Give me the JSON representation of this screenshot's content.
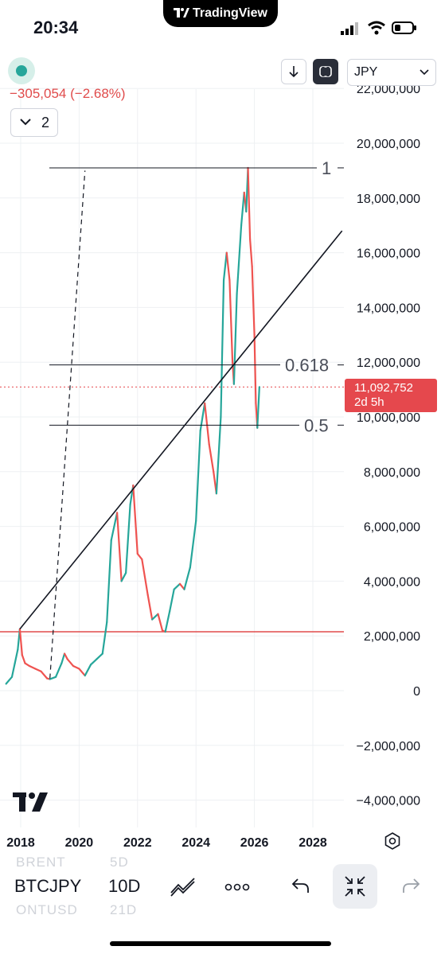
{
  "status": {
    "time": "20:34",
    "app_pill": "TradingView"
  },
  "header": {
    "change": "−305,054 (−2.68%)",
    "indicator_count": "2",
    "currency": "JPY"
  },
  "colors": {
    "up": "#26a69a",
    "down": "#ef5350",
    "last_price": "#e5484d",
    "support_line": "#e04b4b",
    "grid": "#eef0f3"
  },
  "price_tag": {
    "price": "11,092,752",
    "countdown": "2d 5h"
  },
  "chart_data": {
    "type": "line",
    "symbol": "BTCJPY",
    "interval": "10D",
    "y_axis": {
      "ticks": [
        22000000,
        20000000,
        18000000,
        16000000,
        14000000,
        12000000,
        10000000,
        8000000,
        6000000,
        4000000,
        2000000,
        0,
        -2000000,
        -4000000
      ],
      "tick_labels": [
        "22,000,000",
        "20,000,000",
        "18,000,000",
        "16,000,000",
        "14,000,000",
        "12,000,000",
        "10,000,000",
        "8,000,000",
        "6,000,000",
        "4,000,000",
        "2,000,000",
        "0",
        "−2,000,000",
        "−4,000,000"
      ],
      "range": [
        -4500000,
        22300000
      ]
    },
    "x_axis": {
      "ticks": [
        2018,
        2020,
        2022,
        2024,
        2026,
        2028
      ],
      "tick_labels": [
        "2018",
        "2020",
        "2022",
        "2024",
        "2026",
        "2028"
      ],
      "range": [
        2017.5,
        2029
      ]
    },
    "series": [
      {
        "values": [
          [
            2017.5,
            250000
          ],
          [
            2017.7,
            500000
          ],
          [
            2017.8,
            1000000
          ],
          [
            2017.9,
            1500000
          ],
          [
            2017.97,
            2250000
          ],
          [
            2018.05,
            1300000
          ],
          [
            2018.15,
            1000000
          ],
          [
            2018.3,
            900000
          ],
          [
            2018.5,
            800000
          ],
          [
            2018.7,
            700000
          ],
          [
            2018.9,
            450000
          ],
          [
            2019.0,
            420000
          ],
          [
            2019.2,
            500000
          ],
          [
            2019.4,
            1000000
          ],
          [
            2019.5,
            1350000
          ],
          [
            2019.6,
            1150000
          ],
          [
            2019.8,
            900000
          ],
          [
            2020.0,
            800000
          ],
          [
            2020.2,
            550000
          ],
          [
            2020.4,
            950000
          ],
          [
            2020.6,
            1150000
          ],
          [
            2020.8,
            1350000
          ],
          [
            2020.95,
            2500000
          ],
          [
            2021.1,
            5500000
          ],
          [
            2021.3,
            6500000
          ],
          [
            2021.45,
            4000000
          ],
          [
            2021.6,
            4300000
          ],
          [
            2021.75,
            6800000
          ],
          [
            2021.85,
            7500000
          ],
          [
            2022.0,
            5000000
          ],
          [
            2022.15,
            4800000
          ],
          [
            2022.35,
            3500000
          ],
          [
            2022.5,
            2600000
          ],
          [
            2022.7,
            2800000
          ],
          [
            2022.85,
            2200000
          ],
          [
            2022.95,
            2150000
          ],
          [
            2023.1,
            2900000
          ],
          [
            2023.25,
            3700000
          ],
          [
            2023.45,
            3900000
          ],
          [
            2023.6,
            3700000
          ],
          [
            2023.8,
            4500000
          ],
          [
            2024.0,
            6200000
          ],
          [
            2024.15,
            9500000
          ],
          [
            2024.3,
            10500000
          ],
          [
            2024.45,
            9000000
          ],
          [
            2024.6,
            8000000
          ],
          [
            2024.7,
            7200000
          ],
          [
            2024.85,
            10000000
          ],
          [
            2024.95,
            15000000
          ],
          [
            2025.05,
            16000000
          ],
          [
            2025.15,
            15000000
          ],
          [
            2025.25,
            12000000
          ],
          [
            2025.3,
            11200000
          ],
          [
            2025.4,
            14500000
          ],
          [
            2025.55,
            17000000
          ],
          [
            2025.65,
            18200000
          ],
          [
            2025.72,
            17500000
          ],
          [
            2025.78,
            19100000
          ],
          [
            2025.85,
            16500000
          ],
          [
            2025.92,
            15500000
          ],
          [
            2026.0,
            13000000
          ],
          [
            2026.05,
            10500000
          ],
          [
            2026.1,
            9600000
          ],
          [
            2026.17,
            11092752
          ]
        ]
      }
    ],
    "annotations": [
      {
        "type": "fib_level",
        "label": "1",
        "value": 19100000
      },
      {
        "type": "fib_level",
        "label": "0.618",
        "value": 11900000
      },
      {
        "type": "fib_level",
        "label": "0.5",
        "value": 9700000
      },
      {
        "type": "horizontal_line",
        "value": 2150000
      },
      {
        "type": "trend_line",
        "from": [
          2017.97,
          2250000
        ],
        "to": [
          2029.0,
          16800000
        ]
      },
      {
        "type": "dashed_trend_line",
        "from": [
          2019.0,
          450000
        ],
        "to": [
          2020.2,
          19000000
        ]
      },
      {
        "type": "last_price_line",
        "value": 11092752
      }
    ]
  },
  "toolbar": {
    "symbol": "BTCJPY",
    "interval": "10D",
    "ghost_top_symbol": "BRENT",
    "ghost_top_interval": "5D",
    "ghost_bottom_symbol": "ONTUSD",
    "ghost_bottom_interval": "21D",
    "icons": [
      "drawing-tools-icon",
      "more-icon",
      "undo-icon",
      "collapse-icon",
      "redo-icon"
    ]
  }
}
